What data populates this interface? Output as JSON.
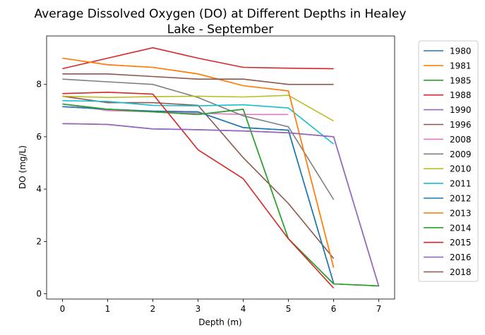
{
  "chart_data": {
    "type": "line",
    "title_line1": "Average Dissolved Oxygen (DO) at Different Depths in Healey",
    "title_line2": "Lake - September",
    "xlabel": "Depth (m)",
    "ylabel": "DO (mg/L)",
    "xlim": [
      -0.35,
      7.35
    ],
    "ylim": [
      -0.2,
      9.85
    ],
    "xticks": [
      0,
      1,
      2,
      3,
      4,
      5,
      6,
      7
    ],
    "yticks": [
      0,
      2,
      4,
      6,
      8
    ],
    "grid": false,
    "legend_position": "outside-right",
    "series": [
      {
        "name": "1980",
        "color": "#1f77b4",
        "x": [
          0,
          1,
          2,
          3,
          4,
          5,
          6
        ],
        "y": [
          7.15,
          7.05,
          6.98,
          6.95,
          6.35,
          6.25,
          0.4
        ]
      },
      {
        "name": "1981",
        "color": "#ff7f0e",
        "x": [
          0,
          1,
          2,
          3,
          4,
          5,
          6
        ],
        "y": [
          9.0,
          8.75,
          8.65,
          8.4,
          7.95,
          7.75,
          1.0
        ]
      },
      {
        "name": "1985",
        "color": "#2ca02c",
        "x": [
          0,
          1,
          2,
          3,
          4,
          5,
          6,
          7
        ],
        "y": [
          7.25,
          7.05,
          6.95,
          6.85,
          7.05,
          2.1,
          0.38,
          0.3
        ]
      },
      {
        "name": "1988",
        "color": "#d62728",
        "x": [
          0,
          1,
          2,
          3,
          4,
          5,
          6
        ],
        "y": [
          8.6,
          9.0,
          9.4,
          9.0,
          8.65,
          8.62,
          8.6
        ]
      },
      {
        "name": "1990",
        "color": "#9467bd",
        "x": [
          0,
          1,
          2,
          3,
          4,
          5,
          6,
          7
        ],
        "y": [
          6.5,
          6.47,
          6.3,
          6.27,
          6.22,
          6.15,
          6.0,
          0.28
        ]
      },
      {
        "name": "1996",
        "color": "#8c564b",
        "x": [
          0,
          1,
          2,
          3,
          4,
          5,
          6
        ],
        "y": [
          7.55,
          7.3,
          7.3,
          7.2,
          5.2,
          3.45,
          1.35
        ]
      },
      {
        "name": "2008",
        "color": "#e377c2",
        "x": [
          0,
          1,
          2,
          3,
          4,
          5
        ],
        "y": [
          7.25,
          7.0,
          6.95,
          6.9,
          6.85,
          6.85
        ]
      },
      {
        "name": "2009",
        "color": "#7f7f7f",
        "x": [
          0,
          1,
          2,
          3,
          4,
          5,
          6
        ],
        "y": [
          8.2,
          8.1,
          8.0,
          7.5,
          6.8,
          6.38,
          3.6
        ]
      },
      {
        "name": "2010",
        "color": "#bcbd22",
        "x": [
          0,
          1,
          2,
          3,
          4,
          5,
          6
        ],
        "y": [
          7.55,
          7.5,
          7.53,
          7.55,
          7.52,
          7.58,
          6.6
        ]
      },
      {
        "name": "2011",
        "color": "#17becf",
        "x": [
          0,
          1,
          2,
          3,
          4,
          5,
          6
        ],
        "y": [
          7.38,
          7.35,
          7.2,
          7.18,
          7.22,
          7.1,
          5.72
        ]
      },
      {
        "name": "2012",
        "color": "#1f77b4",
        "x": [
          0,
          1,
          2,
          3,
          4,
          5,
          6
        ],
        "y": [
          7.15,
          7.05,
          6.98,
          6.95,
          6.35,
          6.25,
          0.4
        ]
      },
      {
        "name": "2013",
        "color": "#ff7f0e",
        "x": [
          0,
          1,
          2,
          3,
          4,
          5,
          6
        ],
        "y": [
          9.0,
          8.75,
          8.65,
          8.4,
          7.95,
          7.75,
          1.0
        ]
      },
      {
        "name": "2014",
        "color": "#2ca02c",
        "x": [
          0,
          1,
          2,
          3,
          4,
          5,
          6,
          7
        ],
        "y": [
          7.25,
          7.05,
          6.95,
          6.85,
          7.05,
          2.1,
          0.38,
          0.3
        ]
      },
      {
        "name": "2015",
        "color": "#d62728",
        "x": [
          0,
          1,
          2,
          3,
          4,
          5,
          6
        ],
        "y": [
          7.65,
          7.7,
          7.63,
          5.5,
          4.4,
          2.1,
          0.22
        ]
      },
      {
        "name": "2016",
        "color": "#9467bd",
        "x": [
          0,
          1,
          2,
          3,
          4,
          5,
          6,
          7
        ],
        "y": [
          6.5,
          6.47,
          6.3,
          6.27,
          6.22,
          6.15,
          6.0,
          0.28
        ]
      },
      {
        "name": "2018",
        "color": "#8c564b",
        "x": [
          0,
          1,
          2,
          3,
          4,
          5,
          6
        ],
        "y": [
          8.4,
          8.4,
          8.3,
          8.2,
          8.2,
          8.0,
          8.0
        ]
      }
    ]
  }
}
